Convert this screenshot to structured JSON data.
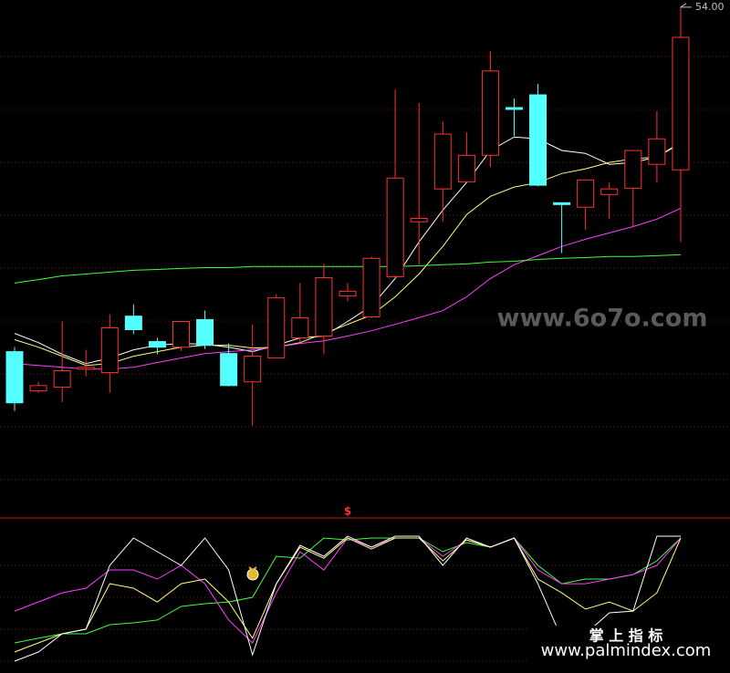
{
  "watermark": "www.6o7o.com",
  "footer": {
    "brand": "掌 上 指 标",
    "url": "www.palmindex.com"
  },
  "chart_data": [
    {
      "type": "candlestick",
      "up_color": "#ff3232",
      "down_color": "#54ffff",
      "ylim": [
        35,
        54.2
      ],
      "open": [
        41.0,
        39.52,
        39.66,
        40.34,
        40.21,
        42.34,
        41.38,
        41.17,
        42.21,
        40.93,
        39.86,
        40.76,
        41.52,
        41.59,
        43.1,
        42.31,
        43.83,
        45.9,
        47.14,
        47.41,
        48.41,
        50.21,
        50.69,
        46.62,
        46.45,
        46.93,
        47.17,
        48.07,
        47.86
      ],
      "high": [
        41.17,
        39.86,
        42.14,
        41.07,
        42.41,
        42.79,
        41.52,
        42.14,
        42.55,
        41.31,
        42.03,
        43.17,
        43.59,
        44.31,
        43.59,
        44.59,
        50.9,
        50.38,
        49.69,
        49.28,
        52.34,
        50.55,
        51.1,
        46.62,
        47.48,
        47.38,
        48.59,
        50.07,
        54.0
      ],
      "low": [
        38.76,
        39.45,
        39.1,
        40.07,
        39.45,
        41.66,
        40.9,
        41.03,
        41.1,
        39.69,
        38.21,
        40.76,
        41.34,
        40.9,
        42.9,
        42.28,
        43.76,
        44.28,
        45.9,
        47.38,
        47.97,
        49.14,
        47.24,
        44.72,
        45.59,
        46.0,
        45.72,
        47.38,
        45.14
      ],
      "close": [
        39.07,
        39.72,
        40.28,
        40.41,
        41.9,
        41.83,
        41.17,
        42.14,
        41.24,
        39.72,
        40.83,
        43.03,
        42.28,
        43.79,
        43.28,
        44.52,
        47.55,
        46.03,
        49.21,
        48.41,
        51.59,
        50.14,
        47.28,
        46.55,
        47.48,
        47.14,
        48.59,
        49.03,
        52.86
      ],
      "annotation": {
        "value": 54.0,
        "label": "54.00"
      },
      "series": [
        {
          "color": "#ffffff",
          "values": [
            41.69,
            41.34,
            40.9,
            40.55,
            40.76,
            41.07,
            41.24,
            41.31,
            41.28,
            41.17,
            41.0,
            41.24,
            41.52,
            41.59,
            42.14,
            42.72,
            43.76,
            45.14,
            46.34,
            47.38,
            48.59,
            49.1,
            49.03,
            48.59,
            48.48,
            48.07,
            48.14,
            48.34,
            48.9
          ]
        },
        {
          "color": "#ffff80",
          "values": [
            41.45,
            41.17,
            40.83,
            40.48,
            40.55,
            40.83,
            41.0,
            41.17,
            41.24,
            41.24,
            41.14,
            41.17,
            41.34,
            41.69,
            42.03,
            42.38,
            43.07,
            43.93,
            44.97,
            46.17,
            46.86,
            47.21,
            47.38,
            47.72,
            47.9,
            48.14,
            48.28,
            48.34,
            48.86
          ]
        },
        {
          "color": "#ff40ff",
          "values": [
            40.55,
            40.48,
            40.41,
            40.34,
            40.34,
            40.41,
            40.59,
            40.76,
            40.93,
            41.0,
            41.07,
            41.17,
            41.31,
            41.41,
            41.59,
            41.79,
            42.03,
            42.28,
            42.55,
            43.07,
            43.76,
            44.28,
            44.62,
            44.97,
            45.24,
            45.48,
            45.72,
            46.0,
            46.41
          ]
        },
        {
          "color": "#40ff40",
          "values": [
            43.59,
            43.72,
            43.86,
            43.93,
            44.0,
            44.07,
            44.1,
            44.14,
            44.17,
            44.17,
            44.21,
            44.21,
            44.21,
            44.21,
            44.21,
            44.21,
            44.21,
            44.24,
            44.28,
            44.31,
            44.38,
            44.41,
            44.48,
            44.52,
            44.55,
            44.59,
            44.59,
            44.62,
            44.66
          ]
        }
      ]
    },
    {
      "type": "line",
      "marker_label": "$",
      "ylim": [
        0,
        100
      ],
      "series": [
        {
          "color": "#ffffff",
          "values": [
            5.5,
            12.4,
            26.2,
            29.7,
            77.9,
            98.6,
            88.3,
            77.9,
            98.6,
            74.5,
            10.3,
            64.1,
            93.1,
            84.8,
            100,
            91.7,
            100,
            100,
            77.9,
            98.6,
            91.7,
            98.6,
            64.1,
            22.8,
            26.2,
            42.1,
            43.4,
            100,
            100
          ]
        },
        {
          "color": "#ffff80",
          "values": [
            12.4,
            19.3,
            26.2,
            29.7,
            64.1,
            60.7,
            50.3,
            64.1,
            67.6,
            50.3,
            22.8,
            64.1,
            91.7,
            83.4,
            98.6,
            90.3,
            98.6,
            98.6,
            81.4,
            97.2,
            91.7,
            98.6,
            67.6,
            57.2,
            44.8,
            50.3,
            43.4,
            57.2,
            98.6
          ]
        },
        {
          "color": "#ff40ff",
          "values": [
            43.4,
            50.3,
            57.2,
            60.7,
            74.5,
            74.5,
            67.6,
            77.9,
            64.1,
            36.6,
            19.3,
            57.2,
            88.3,
            74.5,
            98.6,
            91.7,
            98.6,
            98.6,
            84.8,
            97.2,
            91.7,
            98.6,
            74.5,
            64.1,
            64.1,
            67.6,
            71.0,
            77.9,
            98.6
          ]
        },
        {
          "color": "#40ff40",
          "values": [
            19.3,
            22.8,
            26.2,
            26.2,
            33.1,
            34.5,
            36.6,
            46.9,
            49.0,
            50.3,
            53.8,
            84.8,
            83.4,
            98.6,
            97.2,
            98.6,
            98.6,
            98.6,
            88.3,
            95.2,
            91.7,
            98.6,
            77.9,
            64.1,
            67.6,
            67.6,
            71.0,
            81.4,
            98.6
          ]
        }
      ]
    }
  ]
}
